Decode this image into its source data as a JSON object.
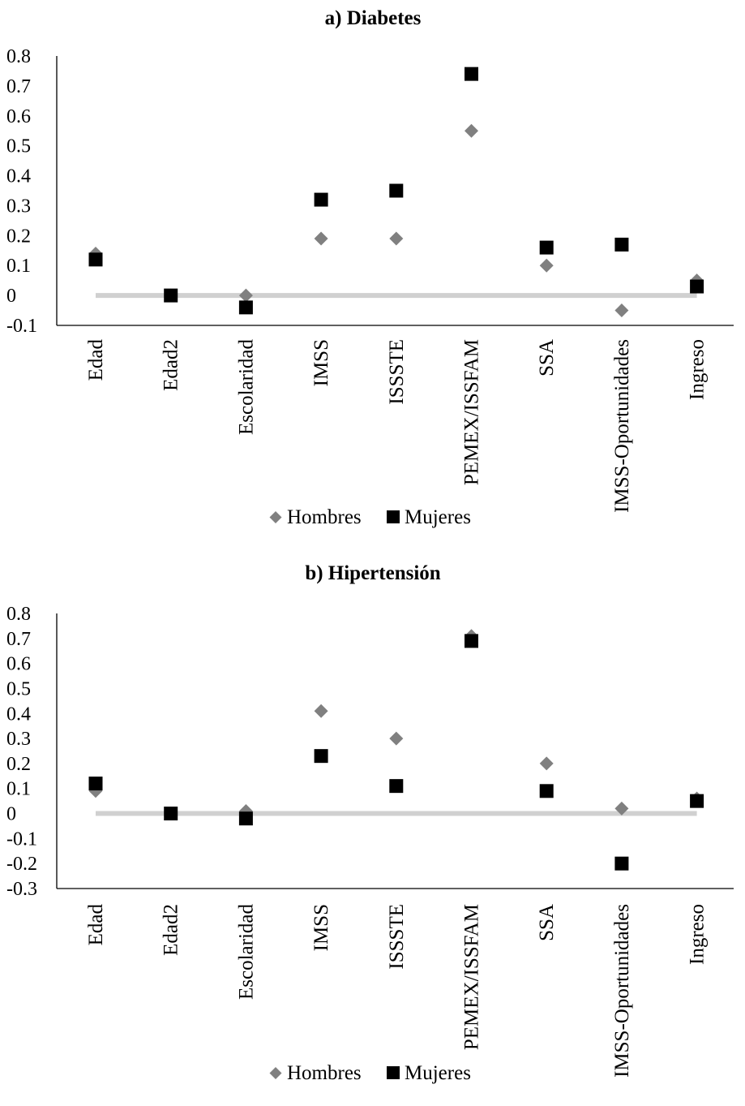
{
  "chart_data": [
    {
      "type": "scatter",
      "title": "a) Diabetes",
      "categories": [
        "Edad",
        "Edad2",
        "Escolaridad",
        "IMSS",
        "ISSSTE",
        "PEMEX/ISSFAM",
        "SSA",
        "IMSS-Oportunidades",
        "Ingreso"
      ],
      "ylim": [
        -0.1,
        0.8
      ],
      "yticks": [
        "-0.1",
        "0",
        "0.1",
        "0.2",
        "0.3",
        "0.4",
        "0.5",
        "0.6",
        "0.7",
        "0.8"
      ],
      "series": [
        {
          "name": "Hombres",
          "marker": "diamond",
          "color": "#808080",
          "values": [
            0.14,
            0.0,
            0.0,
            0.19,
            0.19,
            0.55,
            0.1,
            -0.05,
            0.05
          ]
        },
        {
          "name": "Mujeres",
          "marker": "square",
          "color": "#000000",
          "values": [
            0.12,
            0.0,
            -0.04,
            0.32,
            0.35,
            0.74,
            0.16,
            0.17,
            0.03
          ]
        }
      ],
      "zero_line_color": "#d0d0d0",
      "legend": "bottom"
    },
    {
      "type": "scatter",
      "title": "b) Hipertensión",
      "categories": [
        "Edad",
        "Edad2",
        "Escolaridad",
        "IMSS",
        "ISSSTE",
        "PEMEX/ISSFAM",
        "SSA",
        "IMSS-Oportunidades",
        "Ingreso"
      ],
      "ylim": [
        -0.3,
        0.8
      ],
      "yticks": [
        "-0.3",
        "-0.2",
        "-0.1",
        "0",
        "0.1",
        "0.2",
        "0.3",
        "0.4",
        "0.5",
        "0.6",
        "0.7",
        "0.8"
      ],
      "series": [
        {
          "name": "Hombres",
          "marker": "diamond",
          "color": "#808080",
          "values": [
            0.09,
            0.0,
            0.01,
            0.41,
            0.3,
            0.71,
            0.2,
            0.02,
            0.06
          ]
        },
        {
          "name": "Mujeres",
          "marker": "square",
          "color": "#000000",
          "values": [
            0.12,
            0.0,
            -0.02,
            0.23,
            0.11,
            0.69,
            0.09,
            -0.2,
            0.05
          ]
        }
      ],
      "zero_line_color": "#d0d0d0",
      "legend": "bottom"
    }
  ]
}
